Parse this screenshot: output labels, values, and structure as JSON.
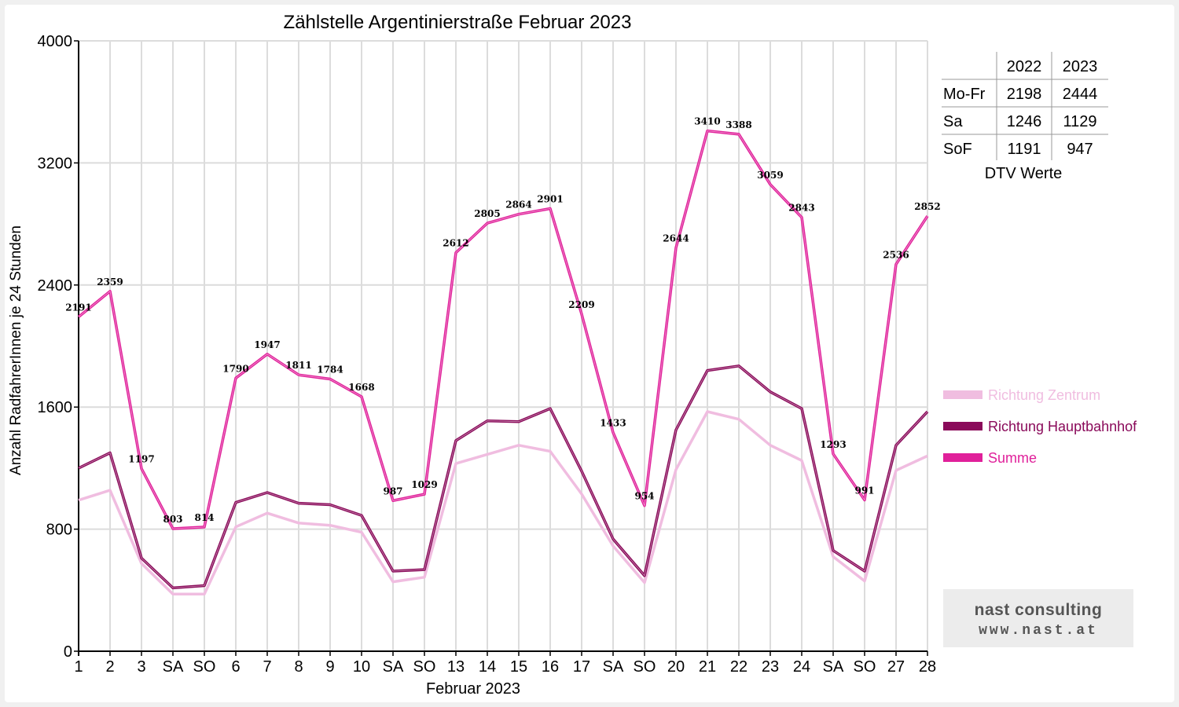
{
  "chart_data": {
    "type": "line",
    "title": "Zählstelle Argentinierstraße Februar 2023",
    "xlabel": "Februar 2023",
    "ylabel": "Anzahl RadfahrerInnen je 24 Stunden",
    "ylim": [
      0,
      4000
    ],
    "yticks": [
      "0",
      "800",
      "1600",
      "2400",
      "3200",
      "4000"
    ],
    "grid": true,
    "categories": [
      "1",
      "2",
      "3",
      "SA",
      "SO",
      "6",
      "7",
      "8",
      "9",
      "10",
      "SA",
      "SO",
      "13",
      "14",
      "15",
      "16",
      "17",
      "SA",
      "SO",
      "20",
      "21",
      "22",
      "23",
      "24",
      "SA",
      "SO",
      "27",
      "28"
    ],
    "weekend_sunday_color": "#ff0000",
    "series": [
      {
        "name": "Richtung Zentrum",
        "color": "#f0bde0",
        "values": [
          990,
          1055,
          575,
          375,
          375,
          815,
          905,
          840,
          825,
          780,
          455,
          485,
          1230,
          1290,
          1350,
          1310,
          1030,
          690,
          450,
          1190,
          1570,
          1520,
          1350,
          1250,
          620,
          460,
          1185,
          1280
        ]
      },
      {
        "name": "Richtung Hauptbahnhof",
        "color": "#8a0a5a",
        "values": [
          1200,
          1300,
          610,
          415,
          430,
          975,
          1040,
          970,
          960,
          890,
          525,
          535,
          1380,
          1510,
          1505,
          1590,
          1180,
          735,
          495,
          1450,
          1840,
          1870,
          1700,
          1590,
          660,
          525,
          1350,
          1570
        ]
      },
      {
        "name": "Summe",
        "color": "#e0209a",
        "values": [
          2191,
          2359,
          1197,
          803,
          814,
          1790,
          1947,
          1811,
          1784,
          1668,
          987,
          1029,
          2612,
          2805,
          2864,
          2901,
          2209,
          1433,
          954,
          2644,
          3410,
          3388,
          3059,
          2843,
          1293,
          991,
          2536,
          2852
        ],
        "labels": [
          "2191",
          "2359",
          "1197",
          "803",
          "814",
          "1790",
          "1947",
          "1811",
          "1784",
          "1668",
          "987",
          "1029",
          "2612",
          "2805",
          "2864",
          "2901",
          "2209",
          "1433",
          "954",
          "2644",
          "3410",
          "3388",
          "3059",
          "2843",
          "1293",
          "991",
          "2536",
          "2852"
        ]
      }
    ],
    "legend_position": "right"
  },
  "dtv_table": {
    "headers": [
      "",
      "2022",
      "2023"
    ],
    "rows": [
      [
        "Mo-Fr",
        "2198",
        "2444"
      ],
      [
        "Sa",
        "1246",
        "1129"
      ],
      [
        "SoF",
        "1191",
        "947"
      ]
    ],
    "caption": "DTV Werte"
  },
  "logo": {
    "line1": "nast consulting",
    "line2": "www.nast.at"
  }
}
